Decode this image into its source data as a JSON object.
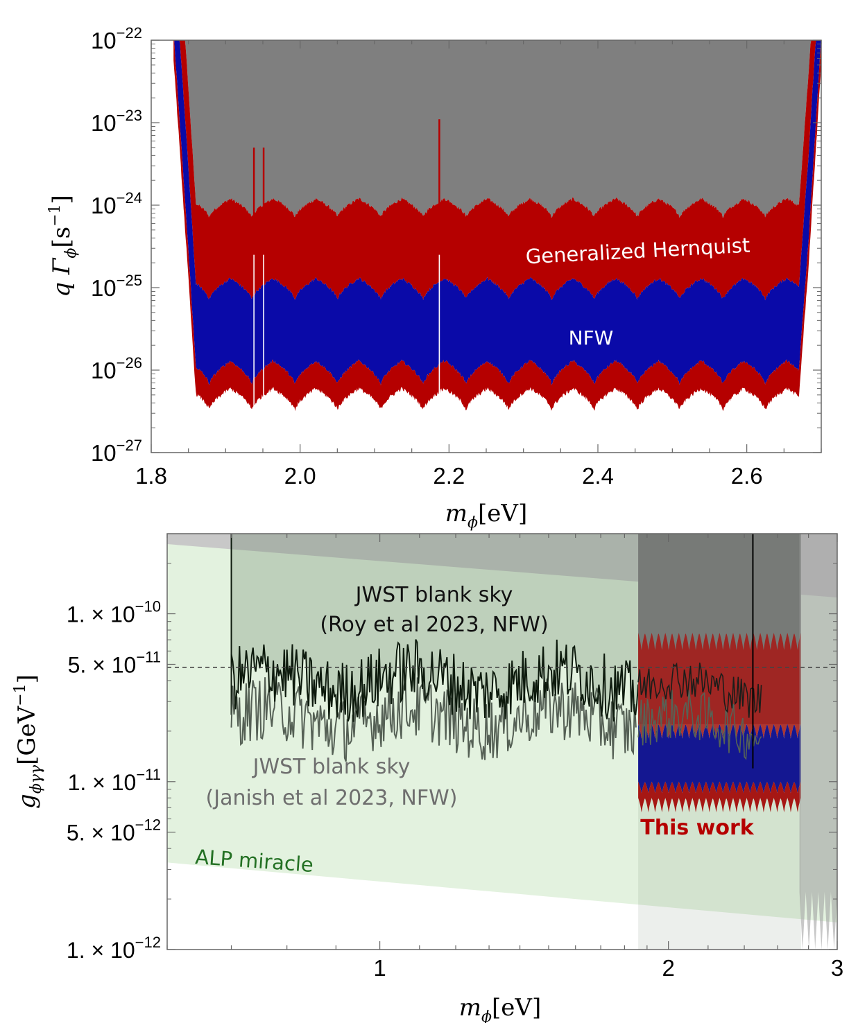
{
  "chart_data": [
    {
      "type": "area",
      "xlabel_main": "m",
      "xlabel_sub": "ϕ",
      "xlabel_unit": "[eV]",
      "ylabel_pre": "q Γ",
      "ylabel_sub": "ϕ",
      "ylabel_unit": "[s",
      "ylabel_exp": "−1",
      "ylabel_close": "]",
      "x_scale": "linear",
      "y_scale": "log",
      "xlim": [
        1.8,
        2.7
      ],
      "ylim": [
        1e-27,
        1e-22
      ],
      "x_ticks": [
        {
          "v": 1.8,
          "label": "1.8"
        },
        {
          "v": 2.0,
          "label": "2.0"
        },
        {
          "v": 2.2,
          "label": "2.2"
        },
        {
          "v": 2.4,
          "label": "2.4"
        },
        {
          "v": 2.6,
          "label": "2.6"
        }
      ],
      "y_ticks": [
        {
          "v": -22,
          "base": "10",
          "exp": "−22"
        },
        {
          "v": -23,
          "base": "10",
          "exp": "−23"
        },
        {
          "v": -24,
          "base": "10",
          "exp": "−24"
        },
        {
          "v": -25,
          "base": "10",
          "exp": "−25"
        },
        {
          "v": -26,
          "base": "10",
          "exp": "−26"
        },
        {
          "v": -27,
          "base": "10",
          "exp": "−27"
        }
      ],
      "band_x_range": [
        1.83,
        2.7
      ],
      "scallop_peaks_x": [
        1.878,
        1.935,
        1.993,
        2.05,
        2.108,
        2.165,
        2.223,
        2.28,
        2.338,
        2.395,
        2.453,
        2.51,
        2.568,
        2.625,
        2.683
      ],
      "series": [
        {
          "name": "Generalized Hernquist",
          "color": "#b50000",
          "role": "upper",
          "floor": 1.2e-24,
          "peak": 7e-25
        },
        {
          "name": "",
          "color": "#7f7f7f",
          "role": "excluded region",
          "top": 1e-22
        },
        {
          "name": "",
          "color": "#0a0aa8",
          "role": "upper",
          "floor": 1.3e-25,
          "peak": 7e-26
        },
        {
          "name": "NFW",
          "color": "#0a0aa8",
          "role": "lower",
          "floor": 1.3e-26,
          "peak": 6.5e-27
        },
        {
          "name": "",
          "color": "#b50000",
          "role": "lower",
          "floor": 6e-27,
          "peak": 3.2e-27
        }
      ],
      "labels": {
        "hernquist": "Generalized Hernquist",
        "nfw": "NFW"
      }
    },
    {
      "type": "line",
      "xlabel_main": "m",
      "xlabel_sub": "ϕ",
      "xlabel_unit": "[eV]",
      "ylabel_pre": "g",
      "ylabel_sub": "ϕγγ",
      "ylabel_unit": "[GeV",
      "ylabel_exp": "−1",
      "ylabel_close": "]",
      "x_scale": "log",
      "y_scale": "log",
      "xlim": [
        0.6,
        3.0
      ],
      "ylim": [
        1e-12,
        3e-10
      ],
      "x_ticks": [
        {
          "v": 1,
          "label": "1"
        },
        {
          "v": 2,
          "label": "2"
        },
        {
          "v": 3,
          "label": "3"
        }
      ],
      "y_ticks": [
        {
          "v": 1e-10,
          "mant": "1.",
          "exp": "−10"
        },
        {
          "v": 5e-11,
          "mant": "5.",
          "exp": "−11"
        },
        {
          "v": 1e-11,
          "mant": "1.",
          "exp": "−11"
        },
        {
          "v": 5e-12,
          "mant": "5.",
          "exp": "−12"
        },
        {
          "v": 1e-12,
          "mant": "1.",
          "exp": "−12"
        }
      ],
      "dashed_line_y": 4.8e-11,
      "alp_band": {
        "x": [
          0.6,
          3.0
        ],
        "top": [
          2.8e-10,
          1.3e-10
        ],
        "bottom": [
          3.3e-12,
          1.45e-12
        ],
        "color": "#e3f2df"
      },
      "grey_top_band": {
        "x": [
          0.6,
          3.0
        ],
        "lower": [
          2.6e-10,
          1.25e-10
        ],
        "color": "#c8c8c8"
      },
      "roy_2023": {
        "x_range": [
          0.7,
          1.86
        ],
        "level": 4e-11,
        "spread": 2.1,
        "color": "#0d1a0d"
      },
      "janish_2023": {
        "x_range": [
          0.7,
          1.85
        ],
        "level": 2.4e-11,
        "spread": 2.1,
        "color": "#556055"
      },
      "this_work": {
        "x_range": [
          1.86,
          2.75
        ],
        "red_top": 2.2e-11,
        "blue_top": 1.3e-11,
        "blue_bottom": 1e-11,
        "red_bottom": 8e-12,
        "colors": {
          "red": "#b00a0a",
          "blue": "#0a0a98",
          "grey": "#7a7a7a"
        }
      },
      "labels": {
        "roy_line1": "JWST blank sky",
        "roy_line2": "(Roy et al 2023, NFW)",
        "janish_line1": "JWST blank sky",
        "janish_line2": "(Janish et al 2023, NFW)",
        "this_work": "This work",
        "alp": "ALP miracle"
      },
      "colors": {
        "alp_text": "#237023",
        "janish_text": "#6e6e6e",
        "this_work_text": "#b50000"
      }
    }
  ]
}
